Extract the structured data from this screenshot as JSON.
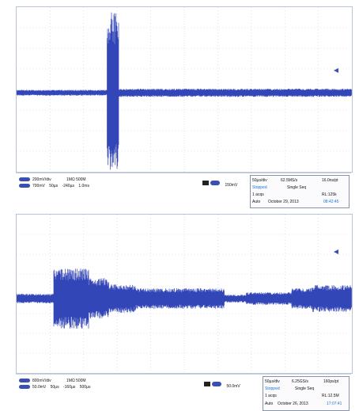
{
  "screens": [
    {
      "ch_scale_1": "200mV/div",
      "ch_scale_2": "700mV",
      "ch_label_1": "1MΩ",
      "ch_bw": "500M",
      "ch_offset_1": "50µs",
      "ch_offset_2": "-240µs",
      "ch_offset_3": "1.0ms",
      "trigger_level": "150mV",
      "timebase": "50µs/div",
      "sample_rate": "62.5MS/s",
      "resolution": "16.0ns/pt",
      "status": "Stopped",
      "mode": "Single Seq",
      "acqs": "1 acqs",
      "record_length": "RL:125k",
      "trigger_mode": "Auto",
      "date": "October 29, 2013",
      "time": "08:42:45"
    },
    {
      "ch_scale_1": "800mV/div",
      "ch_scale_2": "50.0mV",
      "ch_label_1": "1MΩ",
      "ch_bw": "500M",
      "ch_offset_1": "50µs",
      "ch_offset_2": "-160µs",
      "ch_offset_3": "500µs",
      "trigger_level": "50.0mV",
      "timebase": "50µs/div",
      "sample_rate": "6.25GS/s",
      "resolution": "160ps/pt",
      "status": "Stopped",
      "mode": "Single Seq",
      "acqs": "1 acqs",
      "record_length": "RL:12.5M",
      "trigger_mode": "Auto",
      "date": "October 26, 2013",
      "time": "17:07:41"
    }
  ],
  "colors": {
    "trace": "#3346b8",
    "grid": "#c7cfdd",
    "accent": "#1e73d2"
  },
  "waveforms": [
    {
      "segments": [
        [
          0,
          0.27,
          0.035
        ],
        [
          0.27,
          0.305,
          0.98
        ],
        [
          0.305,
          1.0,
          0.05
        ]
      ],
      "center": 0.52
    },
    {
      "segments": [
        [
          0,
          0.11,
          0.06
        ],
        [
          0.11,
          0.215,
          0.38
        ],
        [
          0.215,
          0.275,
          0.26
        ],
        [
          0.275,
          0.355,
          0.18
        ],
        [
          0.355,
          0.62,
          0.13
        ],
        [
          0.62,
          0.685,
          0.05
        ],
        [
          0.685,
          0.82,
          0.08
        ],
        [
          0.82,
          0.88,
          0.13
        ],
        [
          0.88,
          1.0,
          0.17
        ]
      ],
      "center": 0.53
    }
  ]
}
